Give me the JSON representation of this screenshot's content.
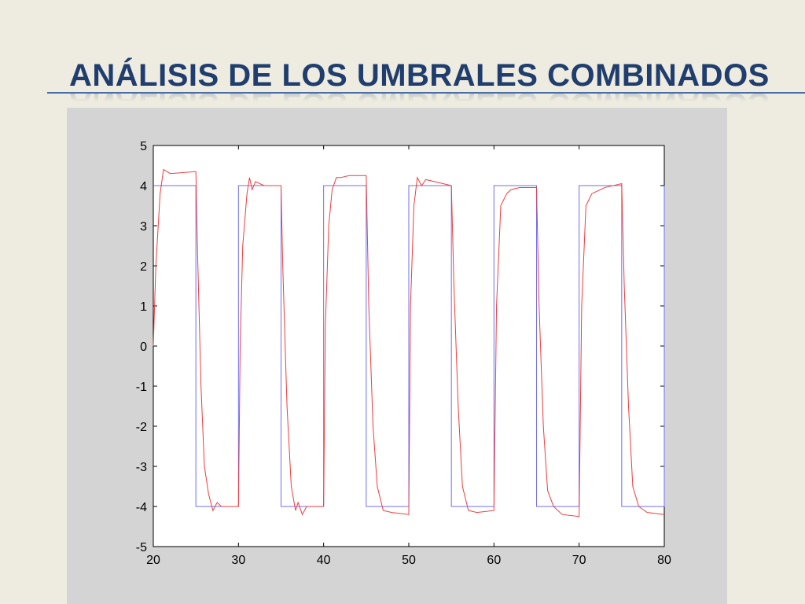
{
  "title": "ANÁLISIS DE LOS UMBRALES COMBINADOS",
  "chart_data": {
    "type": "line",
    "xlim": [
      20,
      80
    ],
    "ylim": [
      -5,
      5
    ],
    "xticks": [
      20,
      30,
      40,
      50,
      60,
      70,
      80
    ],
    "yticks": [
      -5,
      -4,
      -3,
      -2,
      -1,
      0,
      1,
      2,
      3,
      4,
      5
    ],
    "series": [
      {
        "color": "#6f6ff0",
        "x": [
          20,
          25,
          25,
          30,
          30,
          35,
          35,
          40,
          40,
          45,
          45,
          50,
          50,
          55,
          55,
          60,
          60,
          65,
          65,
          70,
          70,
          75,
          75,
          80,
          80
        ],
        "values": [
          4,
          4,
          -4,
          -4,
          4,
          4,
          -4,
          -4,
          4,
          4,
          -4,
          -4,
          4,
          4,
          -4,
          -4,
          4,
          4,
          -4,
          -4,
          4,
          4,
          -4,
          -4,
          4
        ]
      },
      {
        "color": "#f03c3c",
        "x": [
          20,
          20.3,
          20.8,
          21.2,
          22,
          25,
          25.2,
          25.6,
          26,
          26.5,
          27,
          27.5,
          28,
          30,
          30.2,
          30.5,
          31,
          31.3,
          31.6,
          32,
          33,
          35,
          35.2,
          35.7,
          36.2,
          36.7,
          37,
          37.5,
          38,
          40,
          40.2,
          40.6,
          41,
          41.5,
          42,
          43,
          45,
          45.3,
          45.8,
          46.3,
          47,
          48,
          50,
          50.2,
          50.6,
          51,
          51.5,
          52,
          53,
          55,
          55.3,
          55.8,
          56.3,
          57,
          58,
          60,
          60.3,
          60.8,
          61.5,
          62,
          63,
          65,
          65.3,
          65.8,
          66.3,
          67,
          68,
          70,
          70.3,
          70.8,
          71.5,
          72,
          73,
          75,
          75.3,
          75.8,
          76.3,
          77,
          78,
          80
        ],
        "values": [
          0,
          2,
          3.8,
          4.4,
          4.3,
          4.35,
          2.3,
          -1,
          -3,
          -3.7,
          -4.1,
          -3.9,
          -4,
          -4,
          0,
          2.5,
          3.8,
          4.2,
          3.9,
          4.1,
          4,
          4,
          2,
          -1.5,
          -3.5,
          -4.1,
          -3.9,
          -4.2,
          -4,
          -4,
          0.5,
          3,
          3.9,
          4.2,
          4.2,
          4.25,
          4.25,
          1,
          -2,
          -3.5,
          -4.1,
          -4.15,
          -4.2,
          1,
          3.5,
          4.2,
          4,
          4.15,
          4.1,
          4,
          1.5,
          -1.5,
          -3.5,
          -4.1,
          -4.15,
          -4.1,
          1,
          3.5,
          3.8,
          3.9,
          3.95,
          3.95,
          1,
          -2,
          -3.6,
          -4,
          -4.2,
          -4.25,
          1,
          3.5,
          3.8,
          3.85,
          3.95,
          4.05,
          1.5,
          -1.5,
          -3.5,
          -4,
          -4.15,
          -4.2
        ]
      }
    ]
  }
}
